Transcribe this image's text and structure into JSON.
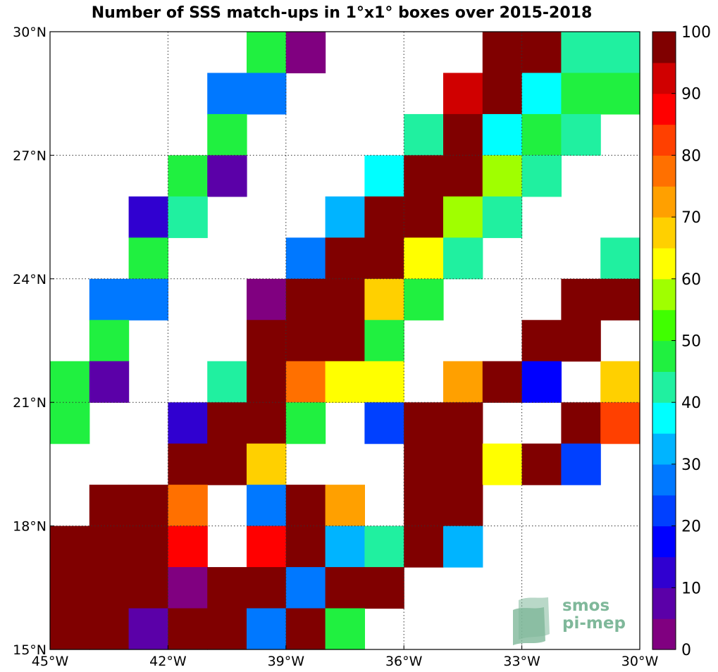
{
  "chart_data": {
    "type": "heatmap",
    "title": "Number of SSS match-ups in 1°x1° boxes over 2015-2018",
    "xlabel": "",
    "ylabel": "",
    "x_ticks": [
      "45°W",
      "42°W",
      "39°W",
      "36°W",
      "33°W",
      "30°W"
    ],
    "y_ticks": [
      "15°N",
      "18°N",
      "21°N",
      "24°N",
      "27°N",
      "30°N"
    ],
    "xlim": [
      -45,
      -30
    ],
    "ylim": [
      15,
      30
    ],
    "grid": true,
    "colorbar": {
      "range": [
        0,
        100
      ],
      "step": 5,
      "ticks": [
        0,
        10,
        20,
        30,
        40,
        50,
        60,
        70,
        80,
        90,
        100
      ],
      "colors": [
        "#800080",
        "#5b00a8",
        "#3000d0",
        "#0000ff",
        "#0040ff",
        "#0078ff",
        "#00b4ff",
        "#00ffff",
        "#20f0a0",
        "#20f040",
        "#40ff00",
        "#a0ff00",
        "#ffff00",
        "#ffd000",
        "#ffa000",
        "#ff7000",
        "#ff4000",
        "#ff0000",
        "#d00000",
        "#800000"
      ]
    },
    "cell_size_deg": 1,
    "cells_note": "each cell: [west_edge_lon, south_edge_lat, match_up_count]",
    "cells": [
      [
        -40,
        29,
        48
      ],
      [
        -39,
        29,
        3
      ],
      [
        -34,
        29,
        100
      ],
      [
        -33,
        29,
        100
      ],
      [
        -32,
        29,
        43
      ],
      [
        -31,
        29,
        43
      ],
      [
        -41,
        28,
        27
      ],
      [
        -40,
        28,
        27
      ],
      [
        -35,
        28,
        93
      ],
      [
        -34,
        28,
        100
      ],
      [
        -33,
        28,
        38
      ],
      [
        -32,
        28,
        48
      ],
      [
        -31,
        28,
        48
      ],
      [
        -41,
        27,
        48
      ],
      [
        -36,
        27,
        43
      ],
      [
        -35,
        27,
        100
      ],
      [
        -34,
        27,
        38
      ],
      [
        -33,
        27,
        48
      ],
      [
        -32,
        27,
        43
      ],
      [
        -42,
        26,
        48
      ],
      [
        -41,
        26,
        7
      ],
      [
        -37,
        26,
        38
      ],
      [
        -36,
        26,
        100
      ],
      [
        -35,
        26,
        100
      ],
      [
        -34,
        26,
        58
      ],
      [
        -33,
        26,
        43
      ],
      [
        -43,
        25,
        12
      ],
      [
        -42,
        25,
        43
      ],
      [
        -38,
        25,
        33
      ],
      [
        -37,
        25,
        100
      ],
      [
        -36,
        25,
        100
      ],
      [
        -35,
        25,
        58
      ],
      [
        -34,
        25,
        43
      ],
      [
        -43,
        24,
        48
      ],
      [
        -39,
        24,
        27
      ],
      [
        -38,
        24,
        100
      ],
      [
        -37,
        24,
        100
      ],
      [
        -36,
        24,
        63
      ],
      [
        -35,
        24,
        43
      ],
      [
        -31,
        24,
        43
      ],
      [
        -44,
        23,
        27
      ],
      [
        -43,
        23,
        27
      ],
      [
        -40,
        23,
        3
      ],
      [
        -39,
        23,
        100
      ],
      [
        -38,
        23,
        100
      ],
      [
        -37,
        23,
        68
      ],
      [
        -36,
        23,
        48
      ],
      [
        -32,
        23,
        100
      ],
      [
        -31,
        23,
        100
      ],
      [
        -44,
        22,
        48
      ],
      [
        -40,
        22,
        100
      ],
      [
        -39,
        22,
        100
      ],
      [
        -38,
        22,
        100
      ],
      [
        -37,
        22,
        48
      ],
      [
        -33,
        22,
        100
      ],
      [
        -32,
        22,
        100
      ],
      [
        -45,
        21,
        48
      ],
      [
        -44,
        21,
        8
      ],
      [
        -41,
        21,
        43
      ],
      [
        -40,
        21,
        100
      ],
      [
        -39,
        21,
        77
      ],
      [
        -38,
        21,
        63
      ],
      [
        -37,
        21,
        63
      ],
      [
        -35,
        21,
        72
      ],
      [
        -34,
        21,
        100
      ],
      [
        -33,
        21,
        18
      ],
      [
        -31,
        21,
        68
      ],
      [
        -45,
        20,
        48
      ],
      [
        -42,
        20,
        12
      ],
      [
        -41,
        20,
        100
      ],
      [
        -40,
        20,
        100
      ],
      [
        -39,
        20,
        48
      ],
      [
        -37,
        20,
        22
      ],
      [
        -36,
        20,
        100
      ],
      [
        -35,
        20,
        100
      ],
      [
        -32,
        20,
        100
      ],
      [
        -31,
        20,
        82
      ],
      [
        -42,
        19,
        100
      ],
      [
        -41,
        19,
        100
      ],
      [
        -40,
        19,
        68
      ],
      [
        -36,
        19,
        100
      ],
      [
        -35,
        19,
        100
      ],
      [
        -34,
        19,
        63
      ],
      [
        -33,
        19,
        100
      ],
      [
        -32,
        19,
        22
      ],
      [
        -44,
        18,
        100
      ],
      [
        -43,
        18,
        100
      ],
      [
        -42,
        18,
        77
      ],
      [
        -40,
        18,
        27
      ],
      [
        -39,
        18,
        100
      ],
      [
        -38,
        18,
        72
      ],
      [
        -36,
        18,
        100
      ],
      [
        -35,
        18,
        100
      ],
      [
        -45,
        17,
        100
      ],
      [
        -44,
        17,
        100
      ],
      [
        -43,
        17,
        100
      ],
      [
        -42,
        17,
        88
      ],
      [
        -40,
        17,
        88
      ],
      [
        -39,
        17,
        100
      ],
      [
        -38,
        17,
        33
      ],
      [
        -37,
        17,
        43
      ],
      [
        -36,
        17,
        100
      ],
      [
        -35,
        17,
        33
      ],
      [
        -45,
        16,
        100
      ],
      [
        -44,
        16,
        100
      ],
      [
        -43,
        16,
        100
      ],
      [
        -42,
        16,
        3
      ],
      [
        -41,
        16,
        100
      ],
      [
        -40,
        16,
        100
      ],
      [
        -39,
        16,
        27
      ],
      [
        -38,
        16,
        100
      ],
      [
        -37,
        16,
        100
      ],
      [
        -45,
        15,
        100
      ],
      [
        -44,
        15,
        100
      ],
      [
        -43,
        15,
        8
      ],
      [
        -42,
        15,
        100
      ],
      [
        -41,
        15,
        100
      ],
      [
        -40,
        15,
        27
      ],
      [
        -39,
        15,
        100
      ],
      [
        -38,
        15,
        48
      ]
    ]
  },
  "watermark": {
    "line1": "smos",
    "line2": "pi-mep",
    "color": "#7fb89a"
  }
}
